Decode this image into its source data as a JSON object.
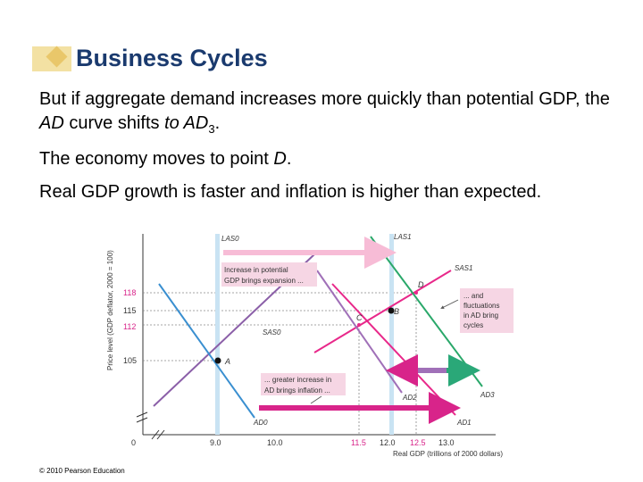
{
  "slide": {
    "title": "Business Cycles",
    "para1_a": "But if aggregate demand increases more quickly than potential GDP, the ",
    "para1_ad": "AD",
    "para1_b": " curve shifts ",
    "para1_to": "to AD",
    "para1_sub": "3",
    "para1_end": ".",
    "para2_a": "The economy moves to point ",
    "para2_d": "D",
    "para2_end": ".",
    "para3": "Real GDP growth is faster and inflation is higher than expected.",
    "copyright": "© 2010 Pearson Education"
  },
  "chart_data": {
    "type": "line",
    "ylabel": "Price level (GDP deflator, 2000 = 100)",
    "xlabel": "Real GDP (trillions of 2000 dollars)",
    "x_ticks": [
      "0",
      "9.0",
      "10.0",
      "11.5",
      "12.0",
      "12.5",
      "13.0"
    ],
    "y_ticks": [
      "105",
      "112",
      "115",
      "118"
    ],
    "curve_labels": {
      "las0": "LAS0",
      "las1": "LAS1",
      "sas0": "SAS0",
      "sas1": "SAS1",
      "ad0": "AD0",
      "ad1": "AD1",
      "ad2": "AD2",
      "ad3": "AD3"
    },
    "points": [
      {
        "name": "A",
        "x": 9.0,
        "y": 105
      },
      {
        "name": "B",
        "x": 12.0,
        "y": 115
      },
      {
        "name": "C",
        "x": 11.5,
        "y": 112
      },
      {
        "name": "D",
        "x": 12.5,
        "y": 118
      }
    ],
    "annotations": {
      "expansion_1": "Increase in potential",
      "expansion_2": "GDP brings expansion ...",
      "inflation_1": "... greater increase in",
      "inflation_2": "AD brings inflation ...",
      "cycles_1": "... and",
      "cycles_2": "fluctuations",
      "cycles_3": "in AD bring",
      "cycles_4": "cycles"
    },
    "colors": {
      "las": "#a8d4ec",
      "sas": "#8b5fa8",
      "sas1": "#e8288a",
      "ad0": "#3a8fd0",
      "ad1": "#e8288a",
      "ad2": "#a070b8",
      "ad3": "#2aa86a",
      "arrow_pink": "#f7bcd6",
      "arrow_magenta": "#d8248a",
      "arrow_teal": "#2aa878"
    }
  }
}
